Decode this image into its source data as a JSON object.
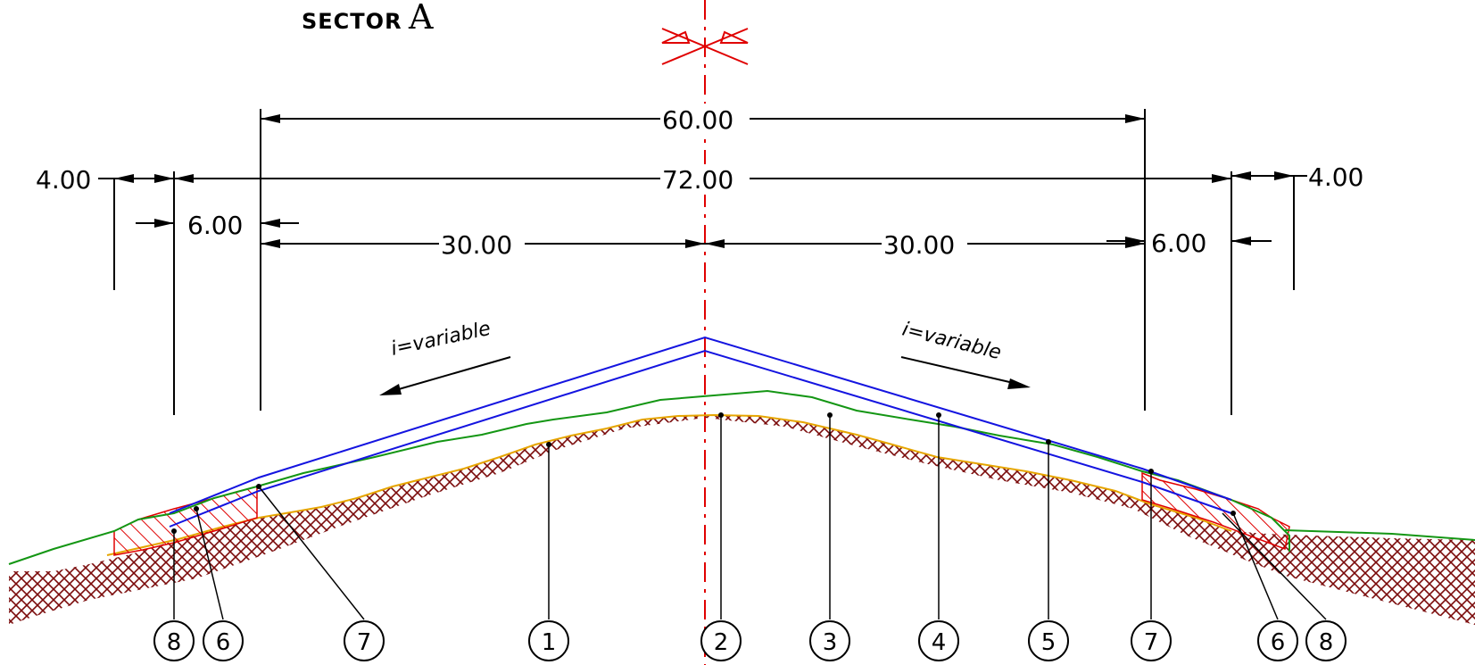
{
  "title": {
    "prefix": "SECTOR",
    "letter": "A"
  },
  "dimensions": {
    "top_width": "60.00",
    "total_width": "72.00",
    "left_shoulder": "4.00",
    "right_shoulder": "4.00",
    "left_offset": "6.00",
    "right_offset": "6.00",
    "left_half": "30.00",
    "right_half": "30.00"
  },
  "slopes": {
    "left": "i=variable",
    "right": "i=variable"
  },
  "callouts": [
    "8",
    "6",
    "7",
    "1",
    "2",
    "3",
    "4",
    "5",
    "7",
    "6",
    "8"
  ],
  "colors": {
    "axis": "#e00000",
    "top_surface": "#1414e0",
    "subgrade": "#149614",
    "terrain_edge": "#e6a500",
    "terrain_hatch": "#7a0a0a",
    "fill_hatch": "#e00000"
  }
}
